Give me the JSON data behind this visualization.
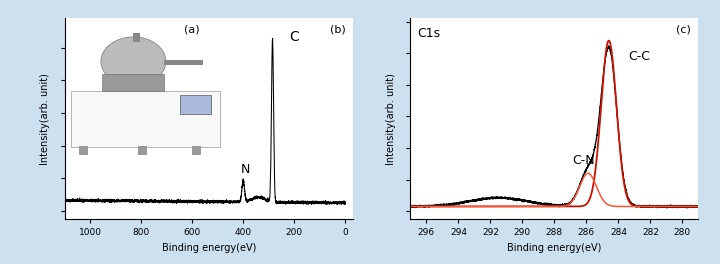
{
  "bg_color": "#cde0f0",
  "panel_bg": "#ffffff",
  "fig_width": 7.2,
  "fig_height": 2.64,
  "left_xlabel": "Binding energy(eV)",
  "left_ylabel": "Intensity(arb. unit)",
  "left_xlim": [
    1100,
    -30
  ],
  "left_xticks": [
    1000,
    800,
    600,
    400,
    200,
    0
  ],
  "left_label_a": "(a)",
  "left_label_b": "(b)",
  "left_annotation_C": "C",
  "left_annotation_N": "N",
  "right_xlabel": "Binding energy(eV)",
  "right_ylabel": "Intensity(arb. unit)",
  "right_xlim": [
    297,
    279
  ],
  "right_xticks": [
    296,
    294,
    292,
    290,
    288,
    286,
    284,
    282,
    280
  ],
  "right_label_c": "(c)",
  "right_annotation_C1s": "C1s",
  "right_annotation_CC": "C-C",
  "right_annotation_CN": "C-N",
  "line_color_black": "#000000",
  "line_color_red": "#cc1100",
  "line_color_red2": "#ff5533"
}
